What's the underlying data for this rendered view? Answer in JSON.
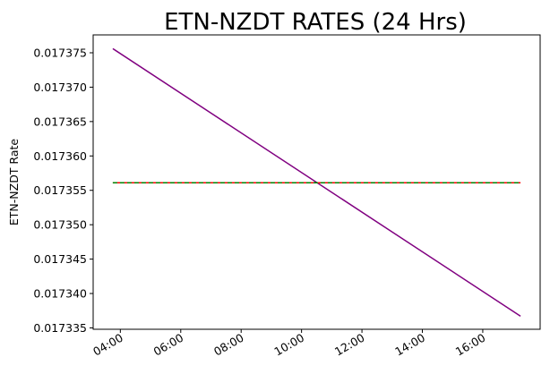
{
  "chart_data": {
    "type": "line",
    "title": "ETN-NZDT RATES (24 Hrs)",
    "xlabel": "",
    "ylabel": "ETN-NZDT Rate",
    "x_ticks": [
      "04:00",
      "06:00",
      "08:00",
      "10:00",
      "12:00",
      "14:00",
      "16:00"
    ],
    "x_tick_hours": [
      4,
      6,
      8,
      10,
      12,
      14,
      16
    ],
    "xlim": [
      3.1,
      17.9
    ],
    "y_ticks": [
      "0.017335",
      "0.017340",
      "0.017345",
      "0.017350",
      "0.017355",
      "0.017360",
      "0.017365",
      "0.017370",
      "0.017375"
    ],
    "ylim": [
      0.0173348,
      0.0173776
    ],
    "grid": false,
    "series": [
      {
        "name": "",
        "color": "#800080",
        "style": "solid",
        "x": [
          3.75,
          17.25
        ],
        "y": [
          0.0173756,
          0.0173367
        ]
      },
      {
        "name": "",
        "color": "#ff0000",
        "style": "solid",
        "x": [
          3.75,
          17.25
        ],
        "y": [
          0.0173561,
          0.0173561
        ]
      },
      {
        "name": "",
        "color": "#008000",
        "style": "dashed",
        "x": [
          3.75,
          17.25
        ],
        "y": [
          0.0173561,
          0.0173561
        ]
      }
    ]
  }
}
